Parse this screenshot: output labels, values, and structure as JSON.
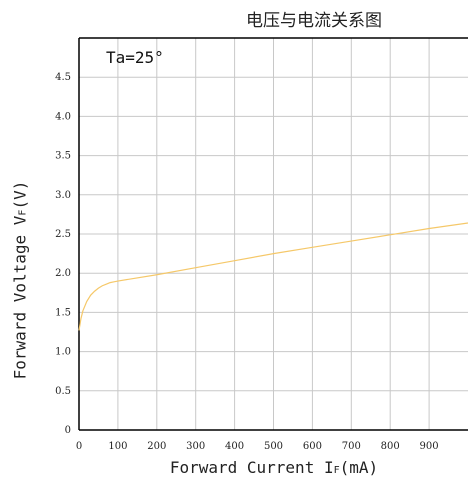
{
  "chart_data": {
    "type": "line",
    "title": "电压与电流关系图",
    "xlabel": "Forward Current I_F(mA)",
    "ylabel": "Forward Voltage V_F(V)",
    "annotation": "Ta=25°",
    "xlim": [
      0,
      1000
    ],
    "ylim": [
      0,
      5
    ],
    "xticks": [
      0,
      100,
      200,
      300,
      400,
      500,
      600,
      700,
      800,
      900
    ],
    "xtick_labels": [
      "0",
      "100",
      "200",
      "300",
      "400",
      "500",
      "600",
      "700",
      "800",
      "900"
    ],
    "yticks": [
      0,
      0.5,
      1.0,
      1.5,
      2.0,
      2.5,
      3.0,
      3.5,
      4.0,
      4.5
    ],
    "ytick_labels": [
      "0",
      "0.5",
      "1.0",
      "1.5",
      "2.0",
      "2.5",
      "3.0",
      "3.5",
      "4.0",
      "4.5"
    ],
    "grid": true,
    "colors": {
      "line": "#f5c869",
      "grid": "#c8c8c8",
      "axis": "#000000"
    },
    "series": [
      {
        "x": [
          0,
          5,
          10,
          20,
          30,
          40,
          50,
          60,
          70,
          80,
          90,
          100,
          200,
          300,
          400,
          500,
          600,
          700,
          800,
          900,
          1000
        ],
        "values": [
          1.27,
          1.42,
          1.52,
          1.64,
          1.72,
          1.77,
          1.81,
          1.84,
          1.86,
          1.88,
          1.89,
          1.9,
          1.98,
          2.07,
          2.16,
          2.25,
          2.33,
          2.41,
          2.49,
          2.57,
          2.64
        ]
      }
    ]
  }
}
